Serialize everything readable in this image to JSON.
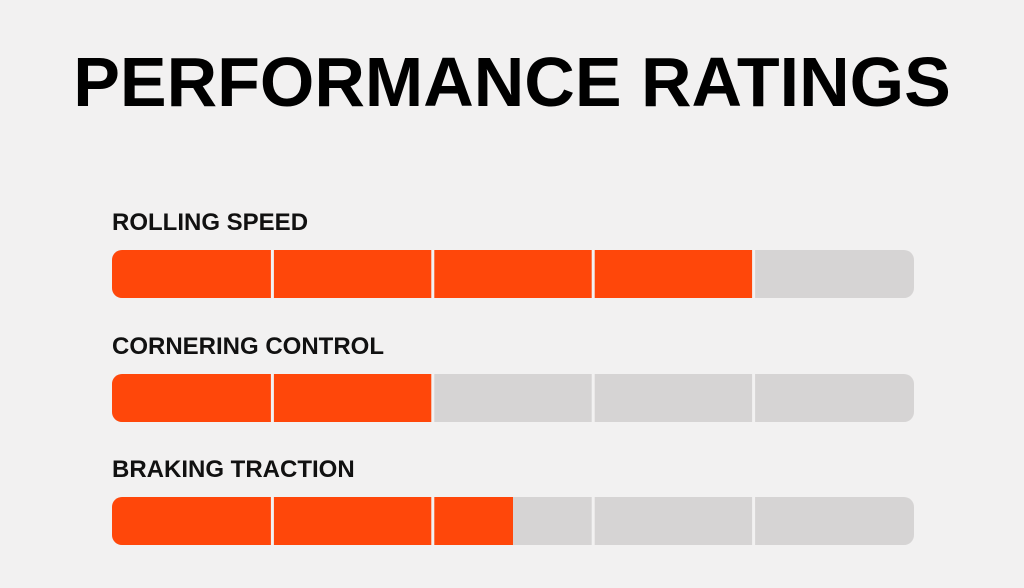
{
  "chart_data": {
    "type": "bar",
    "orientation": "horizontal",
    "title": "PERFORMANCE RATINGS",
    "categories": [
      "ROLLING SPEED",
      "CORNERING CONTROL",
      "BRAKING TRACTION"
    ],
    "values": [
      4,
      2,
      2.5
    ],
    "color": "#ff470a",
    "track_color": "#d6d4d4",
    "xlim": [
      0,
      5
    ]
  }
}
